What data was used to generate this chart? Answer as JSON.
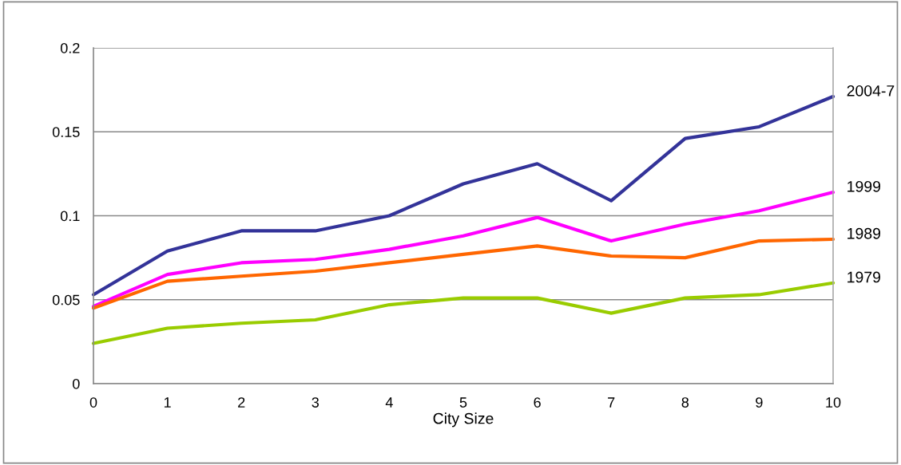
{
  "chart_data": {
    "type": "line",
    "xlabel": "City Size",
    "x": [
      0,
      1,
      2,
      3,
      4,
      5,
      6,
      7,
      8,
      9,
      10
    ],
    "series": [
      {
        "name": "2004-7",
        "color": "#333399",
        "values": [
          0.053,
          0.079,
          0.091,
          0.091,
          0.1,
          0.119,
          0.131,
          0.109,
          0.146,
          0.153,
          0.171
        ]
      },
      {
        "name": "1999",
        "color": "#ff00ff",
        "values": [
          0.046,
          0.065,
          0.072,
          0.074,
          0.08,
          0.088,
          0.099,
          0.085,
          0.095,
          0.103,
          0.114
        ]
      },
      {
        "name": "1989",
        "color": "#ff6600",
        "values": [
          0.045,
          0.061,
          0.064,
          0.067,
          0.072,
          0.077,
          0.082,
          0.076,
          0.075,
          0.085,
          0.086
        ]
      },
      {
        "name": "1979",
        "color": "#99cc00",
        "values": [
          0.024,
          0.033,
          0.036,
          0.038,
          0.047,
          0.051,
          0.051,
          0.042,
          0.051,
          0.053,
          0.06
        ]
      }
    ],
    "xlim": [
      0,
      10
    ],
    "xticks": [
      0,
      1,
      2,
      3,
      4,
      5,
      6,
      7,
      8,
      9,
      10
    ],
    "ylim": [
      0,
      0.2
    ],
    "yticks": [
      0,
      0.05,
      0.1,
      0.15,
      0.2
    ],
    "grid": "y",
    "marker": "none",
    "line_style": "solid",
    "legend": false
  }
}
